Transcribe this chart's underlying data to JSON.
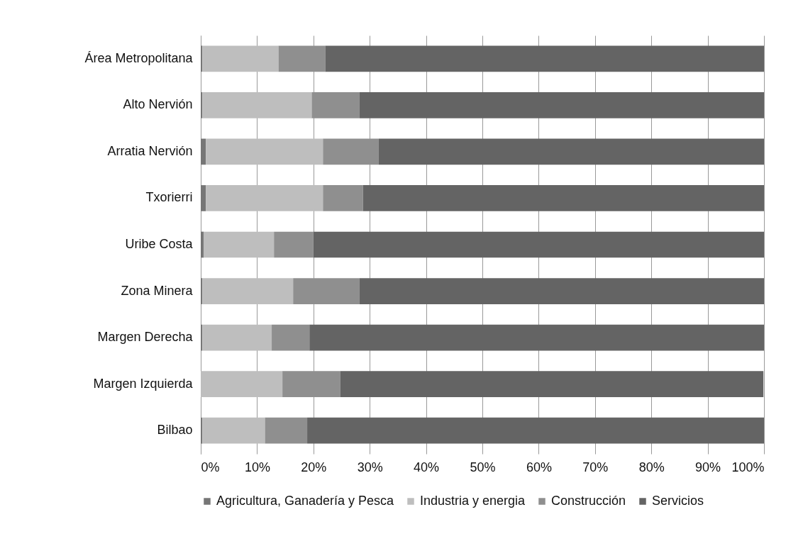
{
  "chart_data": {
    "type": "bar",
    "orientation": "horizontal",
    "stacked": true,
    "categories": [
      "Área Metropolitana",
      "Alto Nervión",
      "Arratia Nervión",
      "Txorierri",
      "Uribe Costa",
      "Zona Minera",
      "Margen Derecha",
      "Margen Izquierda",
      "Bilbao"
    ],
    "series": [
      {
        "name": "Agricultura, Ganadería y Pesca",
        "color": "#767676",
        "values": [
          0.3,
          0.3,
          0.9,
          0.9,
          0.5,
          0.3,
          0.3,
          null,
          0.3
        ]
      },
      {
        "name": "Industria y energia",
        "color": "#bebebe",
        "values": [
          13.5,
          19.4,
          20.8,
          20.8,
          12.5,
          16.1,
          12.3,
          14.5,
          11.1
        ]
      },
      {
        "name": "Construcción",
        "color": "#8f8f8f",
        "values": [
          8.3,
          8.5,
          9.9,
          7.1,
          7.0,
          11.8,
          6.7,
          10.3,
          7.5
        ]
      },
      {
        "name": "Servicios",
        "color": "#646464",
        "values": [
          77.9,
          71.8,
          68.4,
          71.2,
          80.0,
          71.8,
          80.7,
          75.1,
          81.1
        ]
      }
    ],
    "xlim": [
      0,
      100
    ],
    "xticks": [
      {
        "value": 0,
        "label": "0%"
      },
      {
        "value": 10,
        "label": "10%"
      },
      {
        "value": 20,
        "label": "20%"
      },
      {
        "value": 30,
        "label": "30%"
      },
      {
        "value": 40,
        "label": "40%"
      },
      {
        "value": 50,
        "label": "50%"
      },
      {
        "value": 60,
        "label": "60%"
      },
      {
        "value": 70,
        "label": "70%"
      },
      {
        "value": 80,
        "label": "80%"
      },
      {
        "value": 90,
        "label": "90%"
      },
      {
        "value": 100,
        "label": "100%"
      }
    ],
    "grid": "x",
    "legend": "bottom"
  }
}
